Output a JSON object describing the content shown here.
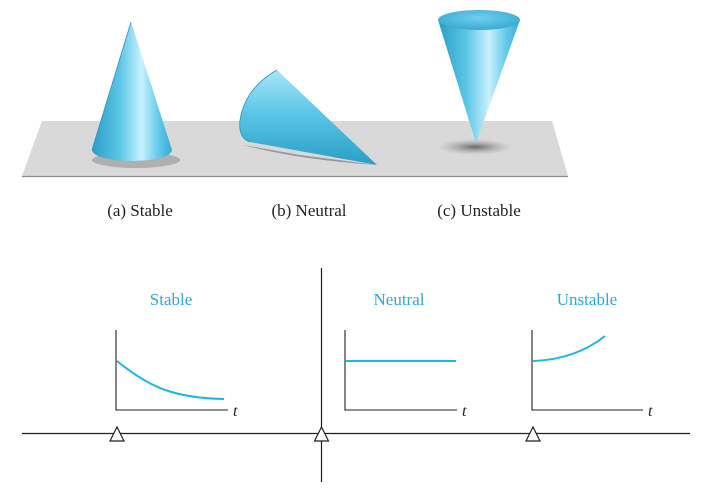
{
  "captions": {
    "stable": "(a) Stable",
    "neutral": "(b) Neutral",
    "unstable": "(c) Unstable"
  },
  "graphs": [
    {
      "title": "Stable",
      "axis_label": "t",
      "curve": "decaying"
    },
    {
      "title": "Neutral",
      "axis_label": "t",
      "curve": "constant"
    },
    {
      "title": "Unstable",
      "axis_label": "t",
      "curve": "growing"
    }
  ],
  "colors": {
    "cone_light": "#b9ecfb",
    "cone_mid": "#5cc6e7",
    "cone_dark": "#2a9ec6",
    "table_surface": "#d9d9d9",
    "title_text": "#2aa8d8",
    "curve": "#1fb6e6",
    "axis": "#231f20"
  },
  "icons": {
    "fulcrum": "triangle-support-icon"
  }
}
